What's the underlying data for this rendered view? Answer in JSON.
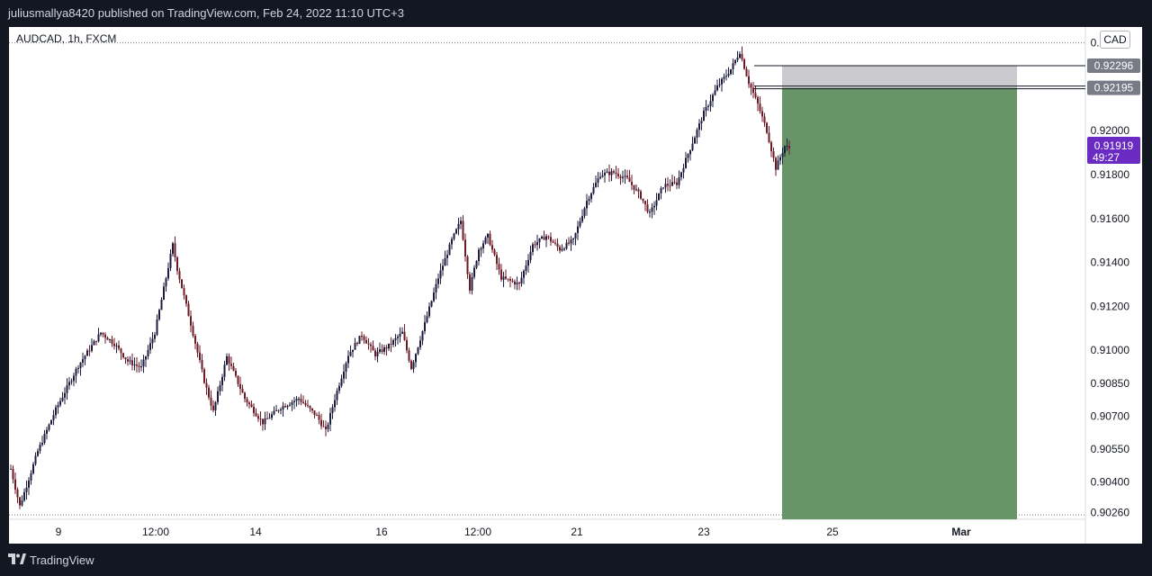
{
  "header": {
    "publish_text": "juliusmallya8420 published on TradingView.com, Feb 24, 2022 11:10 UTC+3"
  },
  "symbol_label": "AUDCAD, 1h, FXCM",
  "currency": "CAD",
  "footer": {
    "brand": "TradingView"
  },
  "colors": {
    "background": "#131722",
    "plot": "#ffffff",
    "candle_up": "#1c1c3e",
    "candle_down": "#6e1a26",
    "reward_zone": "#679568",
    "risk_zone": "#cbcbcf",
    "price_badge": "#6a2bc2"
  },
  "chart_data": {
    "type": "candlestick",
    "symbol": "AUDCAD",
    "timeframe": "1h",
    "broker": "FXCM",
    "x_tick_labels": [
      "9",
      "12:00",
      "14",
      "16",
      "12:00",
      "21",
      "23",
      "25",
      "Mar"
    ],
    "y_tick_labels": [
      "0.92000",
      "0.91800",
      "0.91600",
      "0.91400",
      "0.91200",
      "0.91000",
      "0.90850",
      "0.90700",
      "0.90550",
      "0.90400",
      "0.90260"
    ],
    "ylim": [
      0.9023,
      0.9246
    ],
    "close_path": [
      {
        "i": 0,
        "p": 0.9046
      },
      {
        "i": 4,
        "p": 0.9029
      },
      {
        "i": 12,
        "p": 0.9054
      },
      {
        "i": 20,
        "p": 0.9073
      },
      {
        "i": 30,
        "p": 0.9093
      },
      {
        "i": 40,
        "p": 0.9108
      },
      {
        "i": 46,
        "p": 0.9103
      },
      {
        "i": 52,
        "p": 0.9095
      },
      {
        "i": 58,
        "p": 0.9092
      },
      {
        "i": 64,
        "p": 0.9108
      },
      {
        "i": 68,
        "p": 0.9128
      },
      {
        "i": 72,
        "p": 0.9148
      },
      {
        "i": 74,
        "p": 0.9137
      },
      {
        "i": 80,
        "p": 0.9112
      },
      {
        "i": 86,
        "p": 0.9086
      },
      {
        "i": 90,
        "p": 0.9072
      },
      {
        "i": 96,
        "p": 0.9097
      },
      {
        "i": 104,
        "p": 0.9078
      },
      {
        "i": 112,
        "p": 0.9067
      },
      {
        "i": 120,
        "p": 0.9074
      },
      {
        "i": 128,
        "p": 0.9078
      },
      {
        "i": 136,
        "p": 0.907
      },
      {
        "i": 140,
        "p": 0.9063
      },
      {
        "i": 144,
        "p": 0.9078
      },
      {
        "i": 150,
        "p": 0.9098
      },
      {
        "i": 156,
        "p": 0.9107
      },
      {
        "i": 162,
        "p": 0.9098
      },
      {
        "i": 168,
        "p": 0.9102
      },
      {
        "i": 174,
        "p": 0.9108
      },
      {
        "i": 178,
        "p": 0.9092
      },
      {
        "i": 184,
        "p": 0.9112
      },
      {
        "i": 190,
        "p": 0.9133
      },
      {
        "i": 196,
        "p": 0.915
      },
      {
        "i": 200,
        "p": 0.9159
      },
      {
        "i": 204,
        "p": 0.9128
      },
      {
        "i": 208,
        "p": 0.9146
      },
      {
        "i": 212,
        "p": 0.9152
      },
      {
        "i": 218,
        "p": 0.9133
      },
      {
        "i": 226,
        "p": 0.913
      },
      {
        "i": 232,
        "p": 0.9148
      },
      {
        "i": 238,
        "p": 0.9152
      },
      {
        "i": 244,
        "p": 0.9146
      },
      {
        "i": 250,
        "p": 0.915
      },
      {
        "i": 256,
        "p": 0.9168
      },
      {
        "i": 262,
        "p": 0.918
      },
      {
        "i": 268,
        "p": 0.9181
      },
      {
        "i": 274,
        "p": 0.9178
      },
      {
        "i": 280,
        "p": 0.917
      },
      {
        "i": 284,
        "p": 0.9162
      },
      {
        "i": 290,
        "p": 0.9175
      },
      {
        "i": 296,
        "p": 0.9176
      },
      {
        "i": 302,
        "p": 0.9192
      },
      {
        "i": 308,
        "p": 0.9208
      },
      {
        "i": 314,
        "p": 0.922
      },
      {
        "i": 320,
        "p": 0.9228
      },
      {
        "i": 324,
        "p": 0.9236
      },
      {
        "i": 328,
        "p": 0.9222
      },
      {
        "i": 332,
        "p": 0.9212
      },
      {
        "i": 336,
        "p": 0.92
      },
      {
        "i": 340,
        "p": 0.9183
      },
      {
        "i": 344,
        "p": 0.9193
      },
      {
        "i": 346,
        "p": 0.9192
      }
    ],
    "position": {
      "direction": "short",
      "entry": 0.92195,
      "stop": 0.92296,
      "target": 0.9023,
      "entry_label": "0.92195",
      "stop_label": "0.92296"
    },
    "last_price": {
      "value": 0.91919,
      "label": "0.91919",
      "countdown": "49:27"
    },
    "dotted_top_level": 0.924,
    "dotted_bottom_level": 0.9025,
    "grid": false,
    "legend": "none"
  }
}
